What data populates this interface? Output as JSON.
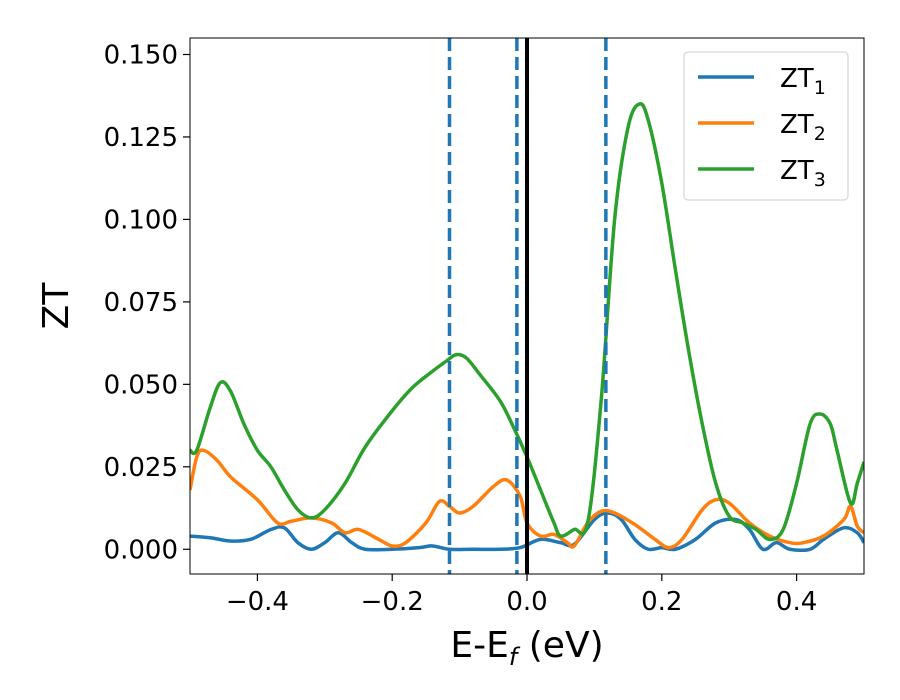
{
  "chart_data": {
    "type": "line",
    "xlabel": "E-E",
    "xlabel_sub": "f",
    "xlabel_unit": " (eV)",
    "ylabel": "ZT",
    "xlim": [
      -0.5,
      0.5
    ],
    "ylim": [
      -0.0075,
      0.155
    ],
    "xticks": [
      -0.4,
      -0.2,
      0.0,
      0.2,
      0.4
    ],
    "xtick_labels": [
      "−0.4",
      "−0.2",
      "0.0",
      "0.2",
      "0.4"
    ],
    "yticks": [
      0.0,
      0.025,
      0.05,
      0.075,
      0.1,
      0.125,
      0.15
    ],
    "ytick_labels": [
      "0.000",
      "0.025",
      "0.050",
      "0.075",
      "0.100",
      "0.125",
      "0.150"
    ],
    "grid": false,
    "legend_position": "top-right",
    "vertical_lines": [
      {
        "x": -0.115,
        "style": "dashed",
        "color": "#1f77b4"
      },
      {
        "x": -0.015,
        "style": "dashed",
        "color": "#1f77b4"
      },
      {
        "x": 0.0,
        "style": "solid",
        "color": "#000000"
      },
      {
        "x": 0.117,
        "style": "dashed",
        "color": "#1f77b4"
      }
    ],
    "series": [
      {
        "name": "ZT",
        "subscript": "1",
        "color": "#1f77b4",
        "points": [
          [
            -0.5,
            0.004
          ],
          [
            -0.47,
            0.0035
          ],
          [
            -0.44,
            0.0025
          ],
          [
            -0.41,
            0.003
          ],
          [
            -0.38,
            0.006
          ],
          [
            -0.36,
            0.0065
          ],
          [
            -0.34,
            0.002
          ],
          [
            -0.32,
            0.0
          ],
          [
            -0.3,
            0.002
          ],
          [
            -0.28,
            0.005
          ],
          [
            -0.26,
            0.002
          ],
          [
            -0.24,
            0.0
          ],
          [
            -0.2,
            0.0
          ],
          [
            -0.16,
            0.0005
          ],
          [
            -0.14,
            0.001
          ],
          [
            -0.115,
            0.0
          ],
          [
            -0.08,
            0.0
          ],
          [
            -0.04,
            0.0
          ],
          [
            -0.01,
            0.0005
          ],
          [
            0.02,
            0.003
          ],
          [
            0.05,
            0.002
          ],
          [
            0.07,
            0.0015
          ],
          [
            0.1,
            0.009
          ],
          [
            0.12,
            0.011
          ],
          [
            0.14,
            0.009
          ],
          [
            0.16,
            0.003
          ],
          [
            0.18,
            0.0
          ],
          [
            0.2,
            0.0005
          ],
          [
            0.22,
            0.0
          ],
          [
            0.25,
            0.003
          ],
          [
            0.28,
            0.008
          ],
          [
            0.31,
            0.009
          ],
          [
            0.33,
            0.006
          ],
          [
            0.35,
            0.0
          ],
          [
            0.37,
            0.002
          ],
          [
            0.39,
            0.0
          ],
          [
            0.42,
            0.0
          ],
          [
            0.44,
            0.003
          ],
          [
            0.47,
            0.0065
          ],
          [
            0.49,
            0.005
          ],
          [
            0.5,
            0.002
          ]
        ]
      },
      {
        "name": "ZT",
        "subscript": "2",
        "color": "#ff7f0e",
        "points": [
          [
            -0.5,
            0.018
          ],
          [
            -0.49,
            0.028
          ],
          [
            -0.48,
            0.03
          ],
          [
            -0.46,
            0.027
          ],
          [
            -0.44,
            0.022
          ],
          [
            -0.4,
            0.015
          ],
          [
            -0.37,
            0.008
          ],
          [
            -0.35,
            0.0085
          ],
          [
            -0.32,
            0.0095
          ],
          [
            -0.29,
            0.008
          ],
          [
            -0.27,
            0.005
          ],
          [
            -0.25,
            0.006
          ],
          [
            -0.22,
            0.003
          ],
          [
            -0.2,
            0.001
          ],
          [
            -0.18,
            0.002
          ],
          [
            -0.15,
            0.008
          ],
          [
            -0.13,
            0.0145
          ],
          [
            -0.115,
            0.013
          ],
          [
            -0.1,
            0.011
          ],
          [
            -0.08,
            0.013
          ],
          [
            -0.05,
            0.019
          ],
          [
            -0.03,
            0.021
          ],
          [
            -0.01,
            0.016
          ],
          [
            0.0,
            0.008
          ],
          [
            0.02,
            0.004
          ],
          [
            0.04,
            0.0045
          ],
          [
            0.06,
            0.002
          ],
          [
            0.07,
            0.001
          ],
          [
            0.09,
            0.008
          ],
          [
            0.11,
            0.0115
          ],
          [
            0.13,
            0.011
          ],
          [
            0.16,
            0.0075
          ],
          [
            0.19,
            0.003
          ],
          [
            0.21,
            0.0005
          ],
          [
            0.23,
            0.003
          ],
          [
            0.26,
            0.012
          ],
          [
            0.28,
            0.015
          ],
          [
            0.3,
            0.014
          ],
          [
            0.33,
            0.008
          ],
          [
            0.36,
            0.004
          ],
          [
            0.39,
            0.002
          ],
          [
            0.41,
            0.002
          ],
          [
            0.44,
            0.004
          ],
          [
            0.47,
            0.009
          ],
          [
            0.48,
            0.013
          ],
          [
            0.49,
            0.007
          ],
          [
            0.5,
            0.005
          ]
        ]
      },
      {
        "name": "ZT",
        "subscript": "3",
        "color": "#2ca02c",
        "points": [
          [
            -0.5,
            0.03
          ],
          [
            -0.49,
            0.03
          ],
          [
            -0.47,
            0.043
          ],
          [
            -0.455,
            0.0505
          ],
          [
            -0.44,
            0.048
          ],
          [
            -0.42,
            0.038
          ],
          [
            -0.4,
            0.03
          ],
          [
            -0.38,
            0.025
          ],
          [
            -0.36,
            0.018
          ],
          [
            -0.34,
            0.012
          ],
          [
            -0.32,
            0.0095
          ],
          [
            -0.3,
            0.012
          ],
          [
            -0.27,
            0.02
          ],
          [
            -0.24,
            0.031
          ],
          [
            -0.2,
            0.042
          ],
          [
            -0.17,
            0.049
          ],
          [
            -0.14,
            0.054
          ],
          [
            -0.12,
            0.057
          ],
          [
            -0.105,
            0.059
          ],
          [
            -0.09,
            0.058
          ],
          [
            -0.07,
            0.053
          ],
          [
            -0.04,
            0.045
          ],
          [
            -0.02,
            0.037
          ],
          [
            0.0,
            0.028
          ],
          [
            0.02,
            0.018
          ],
          [
            0.04,
            0.008
          ],
          [
            0.05,
            0.004
          ],
          [
            0.07,
            0.006
          ],
          [
            0.09,
            0.008
          ],
          [
            0.11,
            0.045
          ],
          [
            0.13,
            0.1
          ],
          [
            0.15,
            0.128
          ],
          [
            0.167,
            0.135
          ],
          [
            0.18,
            0.13
          ],
          [
            0.2,
            0.111
          ],
          [
            0.22,
            0.085
          ],
          [
            0.24,
            0.06
          ],
          [
            0.26,
            0.038
          ],
          [
            0.28,
            0.02
          ],
          [
            0.3,
            0.01
          ],
          [
            0.32,
            0.008
          ],
          [
            0.34,
            0.006
          ],
          [
            0.36,
            0.003
          ],
          [
            0.38,
            0.006
          ],
          [
            0.4,
            0.02
          ],
          [
            0.42,
            0.038
          ],
          [
            0.435,
            0.041
          ],
          [
            0.45,
            0.038
          ],
          [
            0.46,
            0.03
          ],
          [
            0.48,
            0.014
          ],
          [
            0.49,
            0.02
          ],
          [
            0.5,
            0.0265
          ]
        ]
      }
    ]
  }
}
